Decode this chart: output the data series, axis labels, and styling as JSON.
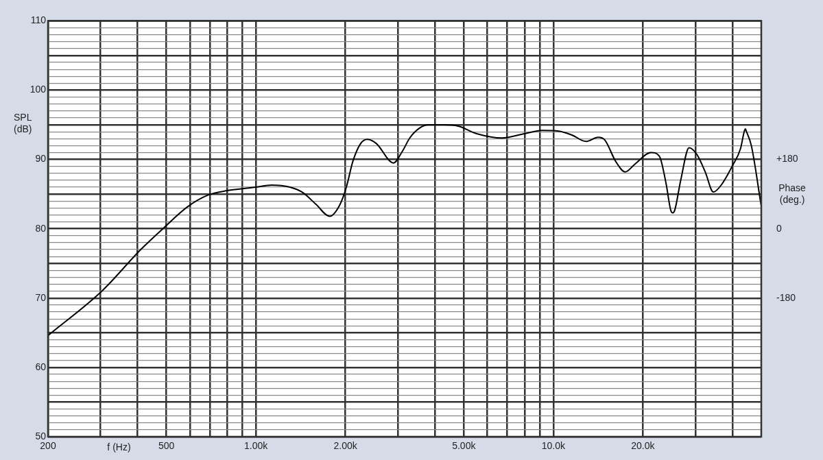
{
  "chart_data": {
    "type": "line",
    "xlabel": "f (Hz)",
    "ylabel": "SPL (dB)",
    "y2label": "Phase (deg.)",
    "log": "x",
    "grid": true,
    "legend": false,
    "marker": "none",
    "line_style": "solid",
    "xlim": [
      200,
      50000
    ],
    "xticks": [
      200,
      {
        "value": 300,
        "label": null
      },
      {
        "value": 400,
        "label": null
      },
      500,
      {
        "value": 600,
        "label": null
      },
      {
        "value": 700,
        "label": null
      },
      {
        "value": 800,
        "label": null
      },
      {
        "value": 900,
        "label": null
      },
      {
        "value": 1000,
        "label": "1.00k"
      },
      {
        "value": 2000,
        "label": "2.00k"
      },
      {
        "value": 3000,
        "label": null
      },
      {
        "value": 4000,
        "label": null
      },
      {
        "value": 5000,
        "label": "5.00k"
      },
      {
        "value": 6000,
        "label": null
      },
      {
        "value": 7000,
        "label": null
      },
      {
        "value": 8000,
        "label": null
      },
      {
        "value": 9000,
        "label": null
      },
      {
        "value": 10000,
        "label": "10.0k"
      },
      {
        "value": 20000,
        "label": "20.0k"
      },
      {
        "value": 30000,
        "label": null
      },
      {
        "value": 40000,
        "label": null
      }
    ],
    "ylim": [
      50,
      110
    ],
    "yticks": [
      50,
      {
        "value": 51,
        "label": null
      },
      {
        "value": 52,
        "label": null
      },
      {
        "value": 53,
        "label": null
      },
      {
        "value": 54,
        "label": null
      },
      {
        "value": 55,
        "label": null
      },
      {
        "value": 56,
        "label": null
      },
      {
        "value": 57,
        "label": null
      },
      {
        "value": 58,
        "label": null
      },
      {
        "value": 59,
        "label": null
      },
      60,
      {
        "value": 61,
        "label": null
      },
      {
        "value": 62,
        "label": null
      },
      {
        "value": 63,
        "label": null
      },
      {
        "value": 64,
        "label": null
      },
      {
        "value": 65,
        "label": null
      },
      {
        "value": 66,
        "label": null
      },
      {
        "value": 67,
        "label": null
      },
      {
        "value": 68,
        "label": null
      },
      {
        "value": 69,
        "label": null
      },
      70,
      {
        "value": 71,
        "label": null
      },
      {
        "value": 72,
        "label": null
      },
      {
        "value": 73,
        "label": null
      },
      {
        "value": 74,
        "label": null
      },
      {
        "value": 75,
        "label": null
      },
      {
        "value": 76,
        "label": null
      },
      {
        "value": 77,
        "label": null
      },
      {
        "value": 78,
        "label": null
      },
      {
        "value": 79,
        "label": null
      },
      80,
      {
        "value": 81,
        "label": null
      },
      {
        "value": 82,
        "label": null
      },
      {
        "value": 83,
        "label": null
      },
      {
        "value": 84,
        "label": null
      },
      {
        "value": 85,
        "label": null
      },
      {
        "value": 86,
        "label": null
      },
      {
        "value": 87,
        "label": null
      },
      {
        "value": 88,
        "label": null
      },
      {
        "value": 89,
        "label": null
      },
      90,
      {
        "value": 91,
        "label": null
      },
      {
        "value": 92,
        "label": null
      },
      {
        "value": 93,
        "label": null
      },
      {
        "value": 94,
        "label": null
      },
      {
        "value": 95,
        "label": null
      },
      {
        "value": 96,
        "label": null
      },
      {
        "value": 97,
        "label": null
      },
      {
        "value": 98,
        "label": null
      },
      {
        "value": 99,
        "label": null
      },
      100,
      {
        "value": 101,
        "label": null
      },
      {
        "value": 102,
        "label": null
      },
      {
        "value": 103,
        "label": null
      },
      {
        "value": 104,
        "label": null
      },
      {
        "value": 105,
        "label": null
      },
      {
        "value": 106,
        "label": null
      },
      {
        "value": 107,
        "label": null
      },
      {
        "value": 108,
        "label": null
      },
      {
        "value": 109,
        "label": null
      },
      110
    ],
    "y2lim": [
      -540,
      540
    ],
    "y2ticks": [
      {
        "value": 180,
        "label": "+180"
      },
      0,
      -180
    ],
    "series": [
      {
        "color": "#000000",
        "x": [
          200,
          305,
          410,
          492,
          590,
          694,
          800,
          1000,
          1129,
          1302,
          1440,
          1594,
          1771,
          1912,
          2014,
          2117,
          2250,
          2367,
          2540,
          2899,
          3110,
          3290,
          3540,
          3810,
          4320,
          4790,
          5550,
          6710,
          7940,
          9200,
          10430,
          11580,
          12870,
          14140,
          14900,
          16210,
          17440,
          18770,
          21300,
          22700,
          23910,
          24800,
          25200,
          25600,
          26800,
          28600,
          30400,
          32400,
          34500,
          36800,
          40000,
          42600,
          43800,
          44200,
          44600,
          46300,
          49900
        ],
        "values": [
          64.6,
          71.1,
          77.0,
          80.2,
          83.2,
          84.9,
          85.5,
          86.0,
          86.3,
          86.0,
          85.2,
          83.5,
          81.8,
          83.4,
          86.0,
          89.7,
          92.3,
          92.9,
          92.3,
          89.5,
          91.2,
          93.1,
          94.5,
          95.0,
          95.0,
          94.8,
          93.7,
          93.1,
          93.7,
          94.2,
          94.1,
          93.5,
          92.6,
          93.2,
          92.8,
          89.7,
          88.2,
          89.3,
          91.0,
          90.5,
          86.6,
          82.7,
          82.3,
          82.7,
          87.0,
          91.7,
          90.7,
          88.2,
          85.3,
          86.4,
          89.1,
          91.6,
          94.0,
          94.4,
          94.0,
          92.0,
          83.5
        ]
      }
    ]
  }
}
